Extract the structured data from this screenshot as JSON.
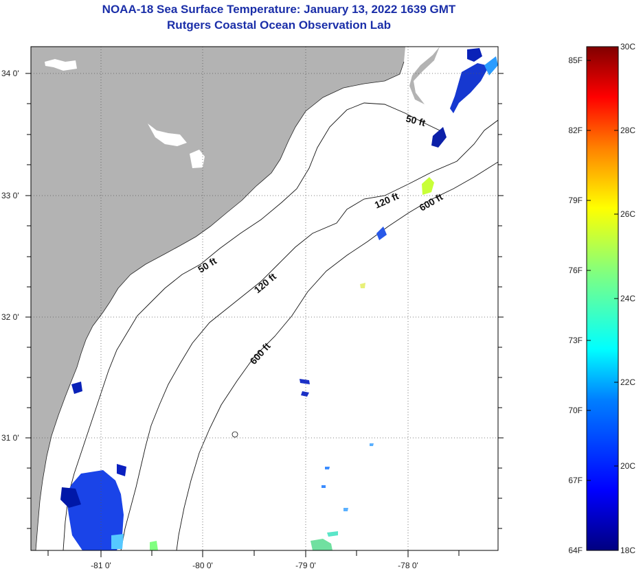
{
  "header": {
    "title": "NOAA-18 Sea Surface Temperature:  January 13, 2022 1639 GMT",
    "subtitle": "Rutgers Coastal Ocean Observation Lab"
  },
  "map": {
    "longitude_labels": [
      "-81 0'",
      "-80 0'",
      "-79 0'",
      "-78 0'"
    ],
    "latitude_labels": [
      "34 0'",
      "33 0'",
      "32 0'",
      "31 0'"
    ],
    "contour_labels": [
      "50 ft",
      "120 ft",
      "600 ft",
      "50 ft",
      "120 ft",
      "600 ft"
    ],
    "colors": {
      "land": "#b3b3b3",
      "ocean": "#ffffff",
      "grid": "#555555"
    }
  },
  "colorbar": {
    "fahrenheit_labels": [
      "85F",
      "82F",
      "79F",
      "76F",
      "73F",
      "70F",
      "67F",
      "64F"
    ],
    "celsius_labels": [
      "30C",
      "28C",
      "26C",
      "24C",
      "22C",
      "20C",
      "18C"
    ],
    "min_c": 18,
    "max_c": 30
  }
}
